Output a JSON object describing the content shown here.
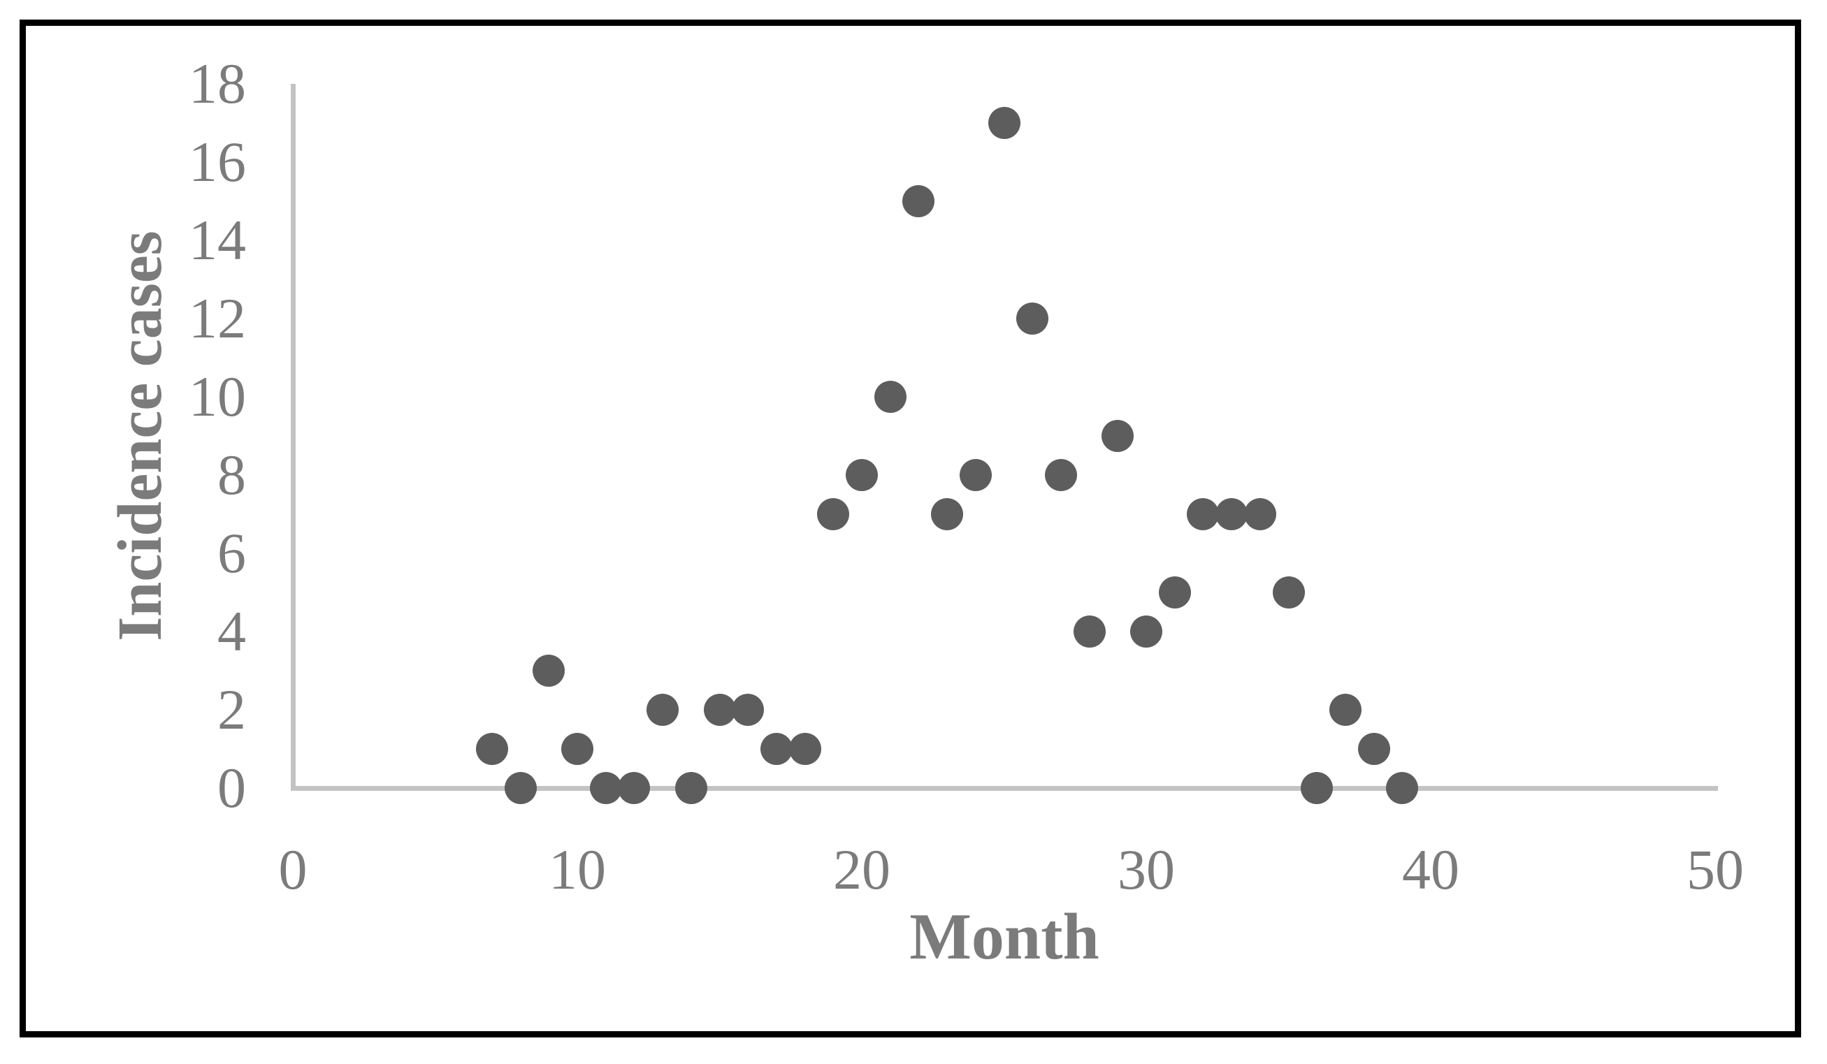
{
  "chart_data": {
    "type": "scatter",
    "title": "",
    "xlabel": "Month",
    "ylabel": "Incidence cases",
    "x_ticks": [
      "0",
      "10",
      "20",
      "30",
      "40",
      "50"
    ],
    "y_ticks": [
      "0",
      "2",
      "4",
      "6",
      "8",
      "10",
      "12",
      "14",
      "16",
      "18"
    ],
    "xlim": [
      0,
      50
    ],
    "ylim": [
      0,
      18
    ],
    "grid": false,
    "legend": false,
    "marker_color": "#5d5d5d",
    "axis_color": "#c3c3c3",
    "text_color": "#7b7b7b",
    "frame_color": "#000000",
    "points": [
      [
        7,
        1
      ],
      [
        8,
        0
      ],
      [
        9,
        3
      ],
      [
        10,
        1
      ],
      [
        11,
        0
      ],
      [
        12,
        0
      ],
      [
        13,
        2
      ],
      [
        14,
        0
      ],
      [
        15,
        2
      ],
      [
        16,
        2
      ],
      [
        17,
        1
      ],
      [
        18,
        1
      ],
      [
        19,
        7
      ],
      [
        20,
        8
      ],
      [
        21,
        10
      ],
      [
        22,
        15
      ],
      [
        23,
        7
      ],
      [
        24,
        8
      ],
      [
        25,
        17
      ],
      [
        26,
        12
      ],
      [
        27,
        8
      ],
      [
        28,
        4
      ],
      [
        29,
        9
      ],
      [
        30,
        4
      ],
      [
        31,
        5
      ],
      [
        32,
        7
      ],
      [
        33,
        7
      ],
      [
        34,
        7
      ],
      [
        35,
        5
      ],
      [
        36,
        0
      ],
      [
        37,
        2
      ],
      [
        38,
        1
      ],
      [
        39,
        0
      ]
    ]
  }
}
